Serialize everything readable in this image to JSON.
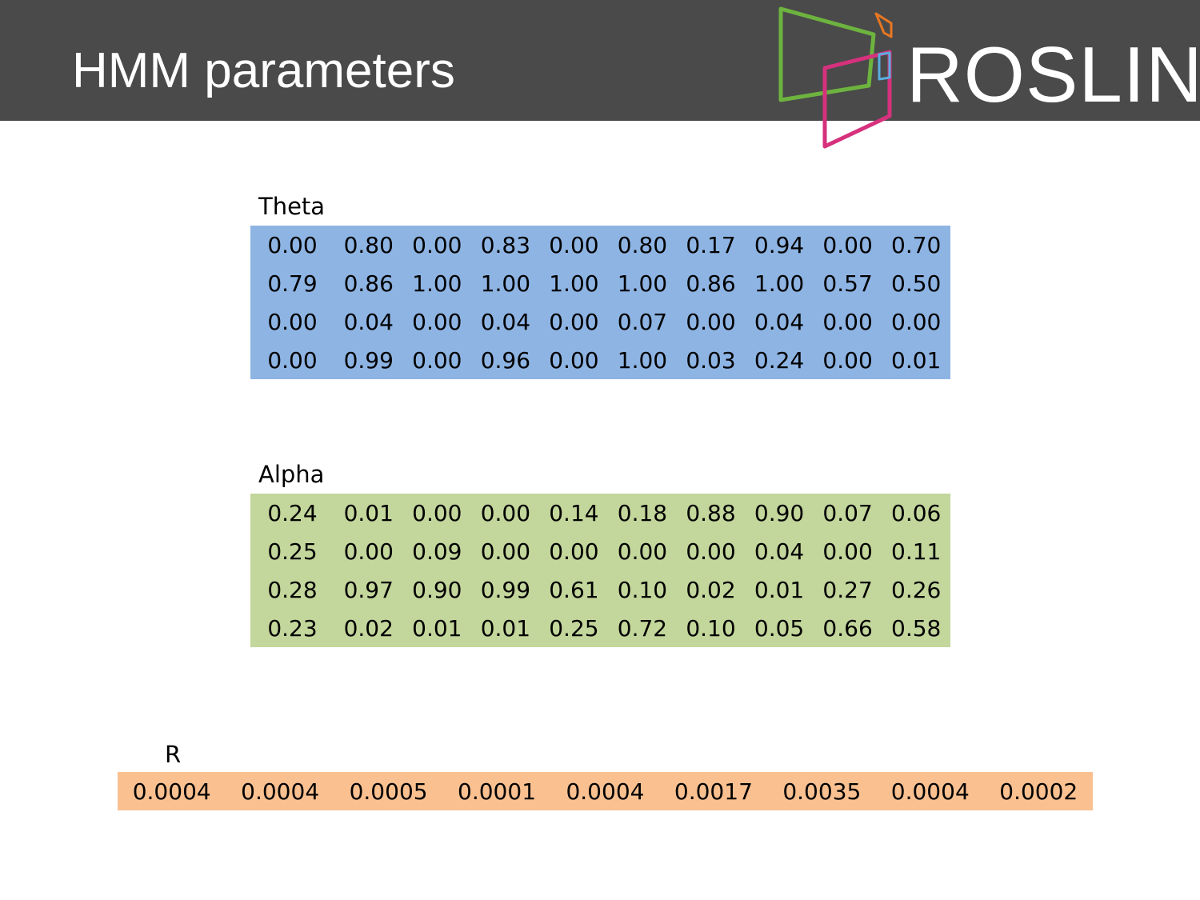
{
  "slide": {
    "title": "HMM parameters"
  },
  "logo": {
    "text": "ROSLIN",
    "colors": {
      "green": "#6db33f",
      "pink": "#d6317c",
      "orange": "#e87722",
      "blue": "#5aaedf"
    }
  },
  "theta": {
    "label": "Theta",
    "color": "#8eb4e3",
    "rows": [
      [
        "0.00",
        "0.80",
        "0.00",
        "0.83",
        "0.00",
        "0.80",
        "0.17",
        "0.94",
        "0.00",
        "0.70"
      ],
      [
        "0.79",
        "0.86",
        "1.00",
        "1.00",
        "1.00",
        "1.00",
        "0.86",
        "1.00",
        "0.57",
        "0.50"
      ],
      [
        "0.00",
        "0.04",
        "0.00",
        "0.04",
        "0.00",
        "0.07",
        "0.00",
        "0.04",
        "0.00",
        "0.00"
      ],
      [
        "0.00",
        "0.99",
        "0.00",
        "0.96",
        "0.00",
        "1.00",
        "0.03",
        "0.24",
        "0.00",
        "0.01"
      ]
    ]
  },
  "alpha": {
    "label": "Alpha",
    "color": "#c3d69b",
    "rows": [
      [
        "0.24",
        "0.01",
        "0.00",
        "0.00",
        "0.14",
        "0.18",
        "0.88",
        "0.90",
        "0.07",
        "0.06"
      ],
      [
        "0.25",
        "0.00",
        "0.09",
        "0.00",
        "0.00",
        "0.00",
        "0.00",
        "0.04",
        "0.00",
        "0.11"
      ],
      [
        "0.28",
        "0.97",
        "0.90",
        "0.99",
        "0.61",
        "0.10",
        "0.02",
        "0.01",
        "0.27",
        "0.26"
      ],
      [
        "0.23",
        "0.02",
        "0.01",
        "0.01",
        "0.25",
        "0.72",
        "0.10",
        "0.05",
        "0.66",
        "0.58"
      ]
    ]
  },
  "r": {
    "label": "R",
    "color": "#fac090",
    "values": [
      "0.0004",
      "0.0004",
      "0.0005",
      "0.0001",
      "0.0004",
      "0.0017",
      "0.0035",
      "0.0004",
      "0.0002"
    ]
  }
}
